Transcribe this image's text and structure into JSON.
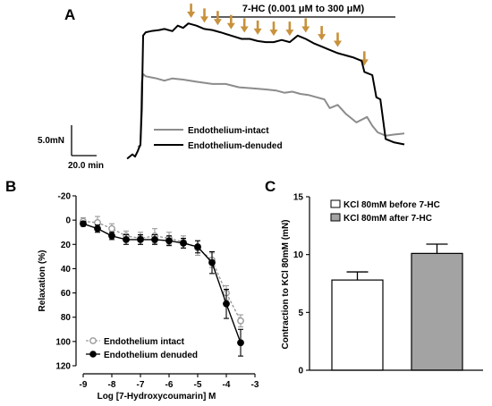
{
  "chart_data": [
    {
      "panel": "A",
      "type": "line",
      "treatment_label": "7-HC (0.001 μM to 300 μM)",
      "scale_bar_y_label": "5.0mN",
      "scale_bar_x_label": "20.0 min",
      "series": [
        {
          "name": "Endothelium-intact",
          "color": "#8c8c8c",
          "x": [
            0,
            1,
            1.5,
            2,
            3,
            5,
            7,
            10,
            13,
            17,
            22,
            28,
            33,
            38,
            43,
            48,
            52,
            55,
            58,
            61,
            64,
            67,
            70,
            72,
            75,
            78,
            82,
            86,
            88,
            90,
            93,
            96,
            100
          ],
          "y": [
            0,
            0.1,
            5.9,
            6.6,
            6.4,
            6.3,
            6.2,
            6.0,
            6.2,
            6.1,
            5.9,
            5.7,
            5.7,
            5.4,
            5.3,
            5.2,
            5.1,
            4.9,
            5.0,
            4.8,
            4.7,
            4.5,
            4.3,
            3.5,
            3.8,
            3.0,
            2.2,
            2.7,
            1.9,
            1.3,
            1.0,
            1.1,
            1.2
          ]
        },
        {
          "name": "Endothelium-denuded",
          "color": "#000000",
          "x": [
            -4,
            -2,
            -1,
            0,
            1,
            1.5,
            2,
            3,
            5,
            8,
            10,
            13,
            15,
            17,
            19,
            22,
            25,
            28,
            31,
            35,
            39,
            42,
            45,
            48,
            51,
            54,
            57,
            60,
            63,
            66,
            69,
            72,
            75,
            78,
            81,
            84,
            85,
            88,
            89.5,
            91,
            93,
            96,
            100
          ],
          "y": [
            -1.1,
            -0.7,
            -0.9,
            -0.4,
            0.2,
            3.4,
            10.1,
            10.4,
            10.5,
            10.6,
            10.7,
            10.5,
            11.0,
            10.8,
            11.2,
            11.0,
            10.7,
            10.6,
            10.4,
            10.1,
            9.8,
            9.8,
            9.6,
            9.5,
            9.5,
            9.7,
            9.5,
            10.1,
            9.8,
            9.4,
            9.1,
            8.8,
            8.5,
            8.3,
            8.1,
            7.8,
            6.8,
            6.5,
            4.5,
            4.3,
            0.7,
            0.4,
            0.2
          ]
        }
      ],
      "arrow_times": [
        20,
        25,
        30,
        35,
        40,
        45,
        51,
        57,
        63,
        69,
        75,
        85
      ]
    },
    {
      "panel": "B",
      "type": "line",
      "xlabel": "Log [7-Hydroxycoumarin] M",
      "ylabel": "Relaxation (%)",
      "xlim": [
        -9,
        -3
      ],
      "ylim": [
        -20,
        120
      ],
      "y_reversed": true,
      "x_ticks": [
        -9,
        -8,
        -7,
        -6,
        -5,
        -4,
        -3
      ],
      "y_ticks": [
        -20,
        0,
        20,
        40,
        60,
        80,
        100,
        120
      ],
      "series": [
        {
          "name": "Endothelium intact",
          "color": "#9a9a9a",
          "marker": "open-circle",
          "dashed": true,
          "x": [
            -9,
            -8.5,
            -8,
            -7.5,
            -7,
            -6.5,
            -6,
            -5.5,
            -5,
            -4.5,
            -4,
            -3.5
          ],
          "y": [
            1,
            2,
            7,
            13,
            15,
            13,
            15,
            18,
            23,
            33,
            60,
            83
          ],
          "err": [
            3,
            5,
            4,
            4,
            5,
            6,
            5,
            5,
            6,
            6,
            6,
            5
          ]
        },
        {
          "name": "Endothelium denuded",
          "color": "#000000",
          "marker": "filled-circle",
          "dashed": false,
          "x": [
            -9,
            -8.5,
            -8,
            -7.5,
            -7,
            -6.5,
            -6,
            -5.5,
            -5,
            -4.5,
            -4,
            -3.5
          ],
          "y": [
            3,
            7,
            13,
            16,
            16,
            16,
            17,
            19,
            22,
            35,
            69,
            101
          ],
          "err": [
            2,
            3,
            3,
            4,
            4,
            4,
            4,
            4,
            5,
            9,
            12,
            11
          ]
        }
      ]
    },
    {
      "panel": "C",
      "type": "bar",
      "ylabel": "Contraction to KCl 80mM (mN)",
      "ylim": [
        0,
        15
      ],
      "y_ticks": [
        0,
        5,
        10,
        15
      ],
      "categories": [
        "KCl 80mM before 7-HC",
        "KCl 80mM after 7-HC"
      ],
      "series": [
        {
          "name": "KCl 80mM before 7-HC",
          "color": "#ffffff",
          "value": 7.8,
          "err": 0.7
        },
        {
          "name": "KCl 80mM after 7-HC",
          "color": "#a3a3a3",
          "value": 10.1,
          "err": 0.8
        }
      ]
    }
  ],
  "panels": {
    "a": "A",
    "b": "B",
    "c": "C"
  },
  "colors": {
    "arrow": "#c8913c",
    "axis": "#000000"
  }
}
